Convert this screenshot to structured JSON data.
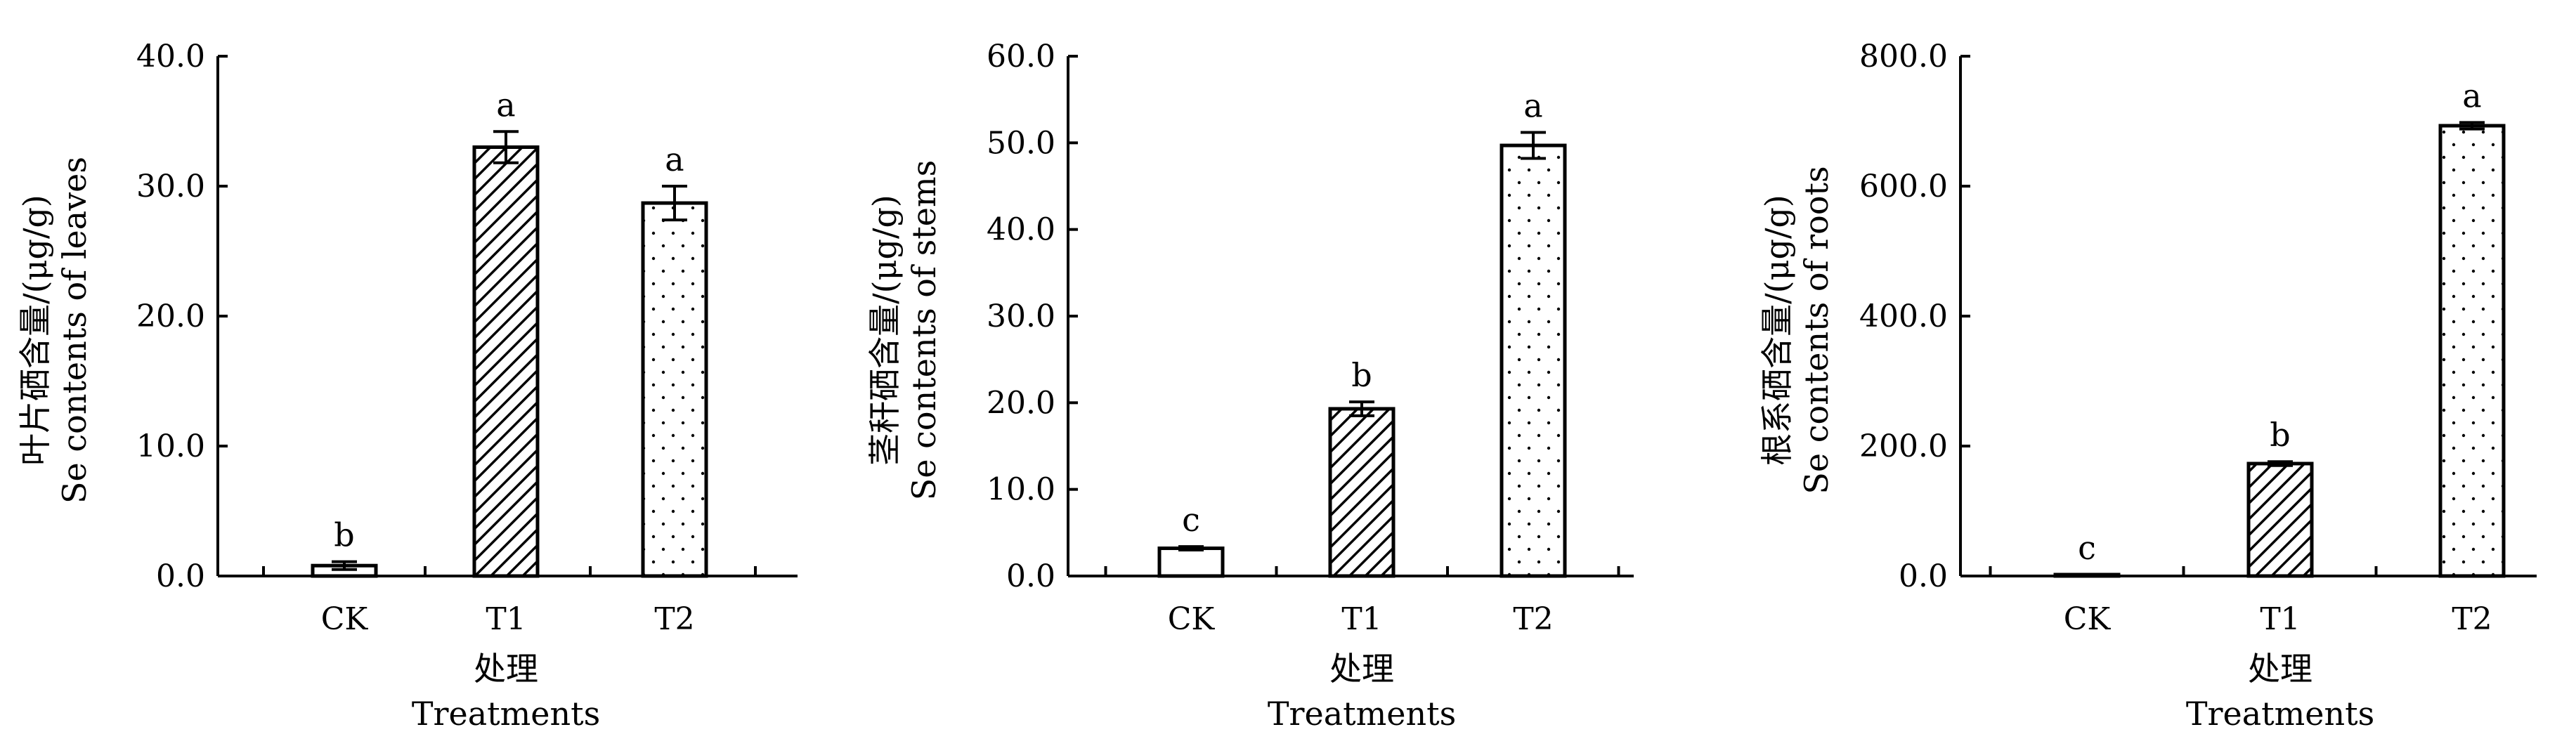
{
  "chart_data": [
    {
      "type": "bar",
      "categories": [
        "CK",
        "T1",
        "T2"
      ],
      "values": [
        0.8,
        33.0,
        28.7
      ],
      "errors": [
        0.3,
        1.2,
        1.3
      ],
      "significance": [
        "b",
        "a",
        "a"
      ],
      "ylim": [
        0,
        40
      ],
      "yticks": [
        "0.0",
        "10.0",
        "20.0",
        "30.0",
        "40.0"
      ],
      "ylabel_line1": "叶片硒含量/(μg/g)",
      "ylabel_line2": "Se contents of leaves",
      "xlabel_line1": "处理",
      "xlabel_line2": "Treatments"
    },
    {
      "type": "bar",
      "categories": [
        "CK",
        "T1",
        "T2"
      ],
      "values": [
        3.2,
        19.3,
        49.7
      ],
      "errors": [
        0.2,
        0.8,
        1.5
      ],
      "significance": [
        "c",
        "b",
        "a"
      ],
      "ylim": [
        0,
        60
      ],
      "yticks": [
        "0.0",
        "10.0",
        "20.0",
        "30.0",
        "40.0",
        "50.0",
        "60.0"
      ],
      "ylabel_line1": "茎秆硒含量/(μg/g)",
      "ylabel_line2": "Se contents of stems",
      "xlabel_line1": "处理",
      "xlabel_line2": "Treatments"
    },
    {
      "type": "bar",
      "categories": [
        "CK",
        "T1",
        "T2"
      ],
      "values": [
        1.5,
        173.0,
        693.0
      ],
      "errors": [
        0.3,
        3.0,
        5.0
      ],
      "significance": [
        "c",
        "b",
        "a"
      ],
      "ylim": [
        0,
        800
      ],
      "yticks": [
        "0.0",
        "200.0",
        "400.0",
        "600.0",
        "800.0"
      ],
      "ylabel_line1": "根系硒含量/(μg/g)",
      "ylabel_line2": "Se contents of roots",
      "xlabel_line1": "处理",
      "xlabel_line2": "Treatments"
    }
  ],
  "colors": {
    "axis": "#000000",
    "bar_fill": "#ffffff",
    "pattern": "#000000"
  },
  "patterns": [
    "plain",
    "diagonal-hatch",
    "dots"
  ]
}
